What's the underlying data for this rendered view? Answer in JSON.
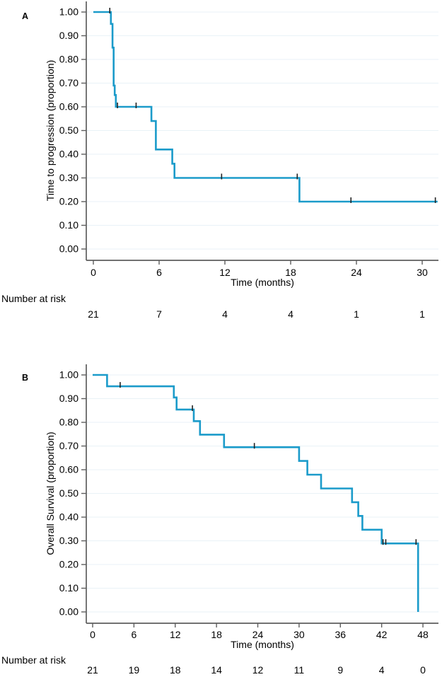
{
  "figure": {
    "background": "#ffffff",
    "accent_color": "#1b9bca"
  },
  "chart_data": [
    {
      "type": "line",
      "subtype": "kaplan-meier-step",
      "panel_label": "A",
      "xlabel": "Time (months)",
      "ylabel": "Time to progression (proportion)",
      "xlim": [
        0,
        31.5
      ],
      "ylim": [
        0,
        1
      ],
      "xticks": [
        0,
        6,
        12,
        18,
        24,
        30
      ],
      "ytick_labels": [
        "0.00",
        "0.10",
        "0.20",
        "0.30",
        "0.40",
        "0.50",
        "0.60",
        "0.70",
        "0.80",
        "0.90",
        "1.00"
      ],
      "grid": "horizontal",
      "legend": "none",
      "line_color": "#1b9bca",
      "grid_color": "#e9f2f7",
      "axis_color": "#5e5e5e",
      "censor_color": "#222222",
      "step_points": [
        [
          0,
          1.0
        ],
        [
          1.6,
          0.95
        ],
        [
          1.75,
          0.85
        ],
        [
          1.85,
          0.69
        ],
        [
          1.95,
          0.65
        ],
        [
          2.05,
          0.6
        ],
        [
          5.3,
          0.54
        ],
        [
          5.7,
          0.42
        ],
        [
          7.2,
          0.36
        ],
        [
          7.4,
          0.3
        ],
        [
          18.8,
          0.2
        ]
      ],
      "end_time": 31.4,
      "censor_marks": [
        [
          1.5,
          1.0
        ],
        [
          2.2,
          0.6
        ],
        [
          3.9,
          0.6
        ],
        [
          11.7,
          0.3
        ],
        [
          18.6,
          0.3
        ],
        [
          23.5,
          0.2
        ],
        [
          31.2,
          0.2
        ]
      ],
      "number_at_risk": {
        "label": "Number at risk",
        "times": [
          0,
          6,
          12,
          18,
          24,
          30
        ],
        "values": [
          21,
          7,
          4,
          4,
          1,
          1
        ]
      }
    },
    {
      "type": "line",
      "subtype": "kaplan-meier-step",
      "panel_label": "B",
      "xlabel": "Time (months)",
      "ylabel": "Overall Survival (proportion)",
      "xlim": [
        0,
        50
      ],
      "ylim": [
        0,
        1
      ],
      "xticks": [
        0,
        6,
        12,
        18,
        24,
        30,
        36,
        42,
        48
      ],
      "ytick_labels": [
        "0.00",
        "0.10",
        "0.20",
        "0.30",
        "0.40",
        "0.50",
        "0.60",
        "0.70",
        "0.80",
        "0.90",
        "1.00"
      ],
      "grid": "horizontal",
      "legend": "none",
      "line_color": "#1b9bca",
      "grid_color": "#e9f2f7",
      "axis_color": "#5e5e5e",
      "censor_color": "#222222",
      "step_points": [
        [
          0,
          1.0
        ],
        [
          2.1,
          0.952
        ],
        [
          11.8,
          0.905
        ],
        [
          12.2,
          0.854
        ],
        [
          14.7,
          0.805
        ],
        [
          15.6,
          0.748
        ],
        [
          19.1,
          0.695
        ],
        [
          30.0,
          0.637
        ],
        [
          31.2,
          0.579
        ],
        [
          33.2,
          0.521
        ],
        [
          37.7,
          0.463
        ],
        [
          38.6,
          0.405
        ],
        [
          39.2,
          0.347
        ],
        [
          42.0,
          0.289
        ],
        [
          47.3,
          0.0
        ]
      ],
      "end_time": 47.3,
      "censor_marks": [
        [
          4.0,
          0.952
        ],
        [
          14.5,
          0.854
        ],
        [
          23.5,
          0.695
        ],
        [
          42.2,
          0.289
        ],
        [
          42.6,
          0.289
        ],
        [
          47.0,
          0.289
        ]
      ],
      "number_at_risk": {
        "label": "Number at risk",
        "times": [
          0,
          6,
          12,
          18,
          24,
          30,
          36,
          42,
          48
        ],
        "values": [
          21,
          19,
          18,
          14,
          12,
          11,
          9,
          4,
          0
        ]
      }
    }
  ]
}
